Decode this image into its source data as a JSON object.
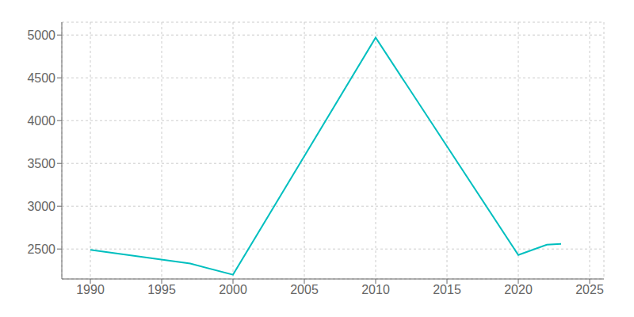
{
  "chart_data": {
    "type": "line",
    "x": [
      1990,
      1997,
      2000,
      2010,
      2020,
      2022,
      2023
    ],
    "values": [
      2490,
      2330,
      2200,
      4970,
      2430,
      2550,
      2560
    ],
    "color": "#00BFBF",
    "xlim": [
      1988,
      2026
    ],
    "ylim": [
      2150,
      5150
    ],
    "xticks": [
      1990,
      1995,
      2000,
      2005,
      2010,
      2015,
      2020,
      2025
    ],
    "yticks": [
      2500,
      3000,
      3500,
      4000,
      4500,
      5000
    ],
    "grid": true
  }
}
